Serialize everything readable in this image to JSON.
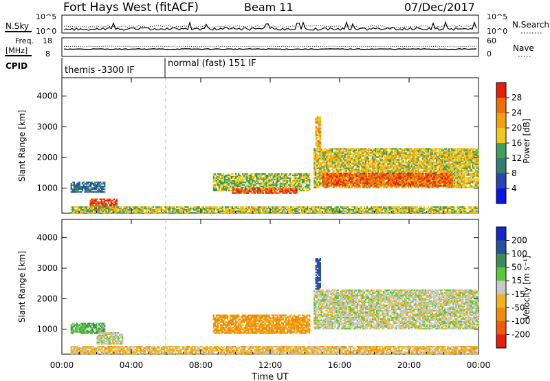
{
  "header": {
    "station": "Fort Hays West (fitACF)",
    "beam": "Beam 11",
    "date": "07/Dec/2017"
  },
  "strips": {
    "nsky_label": "N.Sky",
    "nsearch_label": "N.Search",
    "left_ticks": [
      "10^5",
      "10^0"
    ],
    "right_ticks": [
      "10^5",
      "10^0"
    ],
    "freq_label": "Freq.",
    "freq_unit": "[MHz]",
    "freq_ticks": [
      "18",
      "8"
    ],
    "nave_ticks": [
      "60",
      "0"
    ],
    "nave_label": "Nave",
    "cpid_label": "CPID",
    "cpid_modes": [
      "themis -3300 IF",
      "normal (fast) 151 IF"
    ]
  },
  "colors": {
    "power": [
      "#0a14e6",
      "#2846b4",
      "#327d6e",
      "#3ea05a",
      "#f0c81e",
      "#f5a00a",
      "#f06e0a",
      "#e61e0a"
    ],
    "velocity": [
      "#e61e0a",
      "#f05a0a",
      "#f08c0a",
      "#f0b41e",
      "#c8c8c8",
      "#5ac83c",
      "#3c8c5a",
      "#2850a0",
      "#1428c8"
    ]
  },
  "chart_data": [
    {
      "type": "heatmap",
      "panel": "power",
      "ylabel": "Slant Range [km]",
      "ylim": [
        180,
        4600
      ],
      "yticks": [
        "1000",
        "2000",
        "3000",
        "4000"
      ],
      "xlim_hours": [
        0,
        24
      ],
      "xticks": [
        "00:00",
        "04:00",
        "08:00",
        "12:00",
        "16:00",
        "20:00",
        "00:00"
      ],
      "colorbar": {
        "label": "Power [dB]",
        "ticks": [
          "4",
          "8",
          "12",
          "16",
          "20",
          "24",
          "28"
        ],
        "range": [
          0,
          30
        ]
      },
      "regions": [
        {
          "hours": [
            0.5,
            2.5
          ],
          "range_km": [
            850,
            1200
          ],
          "db": 8
        },
        {
          "hours": [
            1.6,
            3.2
          ],
          "range_km": [
            300,
            650
          ],
          "db": 27
        },
        {
          "hours": [
            8.7,
            14.3
          ],
          "range_km": [
            900,
            1450
          ],
          "db": 15
        },
        {
          "hours": [
            9.8,
            13.5
          ],
          "range_km": [
            820,
            980
          ],
          "db": 26
        },
        {
          "hours": [
            14.5,
            24.0
          ],
          "range_km": [
            1000,
            2300
          ],
          "db": 17
        },
        {
          "hours": [
            15.0,
            22.5
          ],
          "range_km": [
            1050,
            1500
          ],
          "db": 25
        },
        {
          "hours": [
            14.6,
            14.9
          ],
          "range_km": [
            2300,
            3300
          ],
          "db": 20
        },
        {
          "hours": [
            0.5,
            23.9
          ],
          "range_km": [
            180,
            400
          ],
          "db": 16
        }
      ]
    },
    {
      "type": "heatmap",
      "panel": "velocity",
      "ylabel": "Slant Range [km]",
      "ylim": [
        180,
        4600
      ],
      "yticks": [
        "1000",
        "2000",
        "3000",
        "4000"
      ],
      "xlim_hours": [
        0,
        24
      ],
      "xticks": [
        "00:00",
        "04:00",
        "08:00",
        "12:00",
        "16:00",
        "20:00",
        "00:00"
      ],
      "xlabel": "Time UT",
      "colorbar": {
        "label": "Velocity [m s⁻¹]",
        "ticks": [
          "200",
          "100",
          "50",
          "15",
          "-15",
          "-50",
          "-100",
          "-200"
        ]
      },
      "regions": [
        {
          "hours": [
            0.5,
            2.5
          ],
          "range_km": [
            850,
            1200
          ],
          "ms": 40
        },
        {
          "hours": [
            2.0,
            3.5
          ],
          "range_km": [
            500,
            900
          ],
          "ms": 0
        },
        {
          "hours": [
            8.7,
            14.3
          ],
          "range_km": [
            850,
            1450
          ],
          "ms": -60
        },
        {
          "hours": [
            14.5,
            24.0
          ],
          "range_km": [
            1000,
            2300
          ],
          "ms": 0
        },
        {
          "hours": [
            14.6,
            14.9
          ],
          "range_km": [
            2300,
            3300
          ],
          "ms": 150
        },
        {
          "hours": [
            0.5,
            23.9
          ],
          "range_km": [
            180,
            450
          ],
          "ms": -30
        }
      ]
    }
  ]
}
